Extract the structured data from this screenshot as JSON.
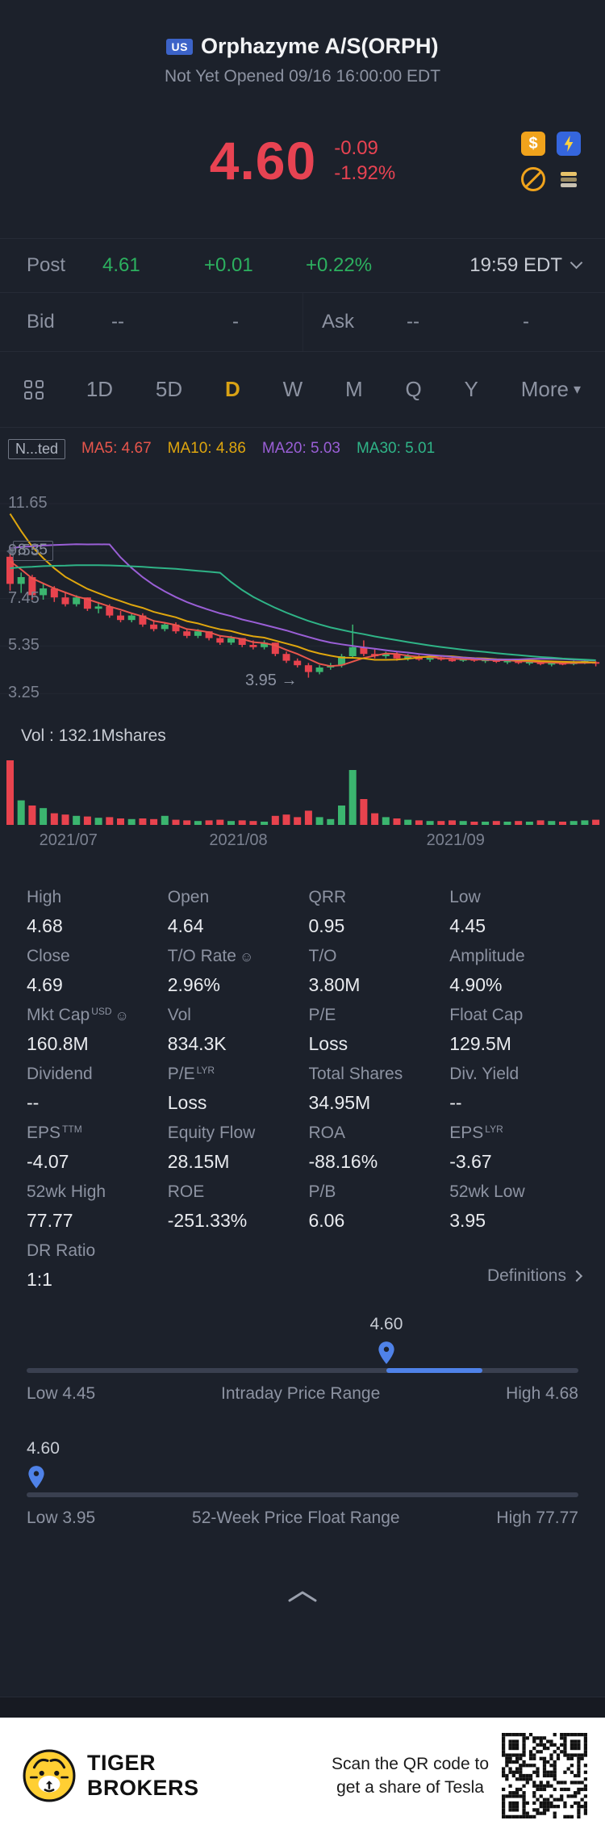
{
  "header": {
    "flag": "US",
    "title": "Orphazyme A/S(ORPH)",
    "status": "Not Yet Opened 09/16 16:00:00 EDT"
  },
  "quote": {
    "price": "4.60",
    "change": "-0.09",
    "change_pct": "-1.92%"
  },
  "post": {
    "label": "Post",
    "price": "4.61",
    "change": "+0.01",
    "change_pct": "+0.22%",
    "time": "19:59 EDT"
  },
  "bidask": {
    "bid_label": "Bid",
    "bid_price": "--",
    "bid_size": "-",
    "ask_label": "Ask",
    "ask_price": "--",
    "ask_size": "-"
  },
  "tabs": {
    "active": "D",
    "items": [
      {
        "label": "1D"
      },
      {
        "label": "5D"
      },
      {
        "label": "D"
      },
      {
        "label": "W"
      },
      {
        "label": "M"
      },
      {
        "label": "Q"
      },
      {
        "label": "Y"
      },
      {
        "label": "More",
        "dropdown": true
      }
    ]
  },
  "legend": {
    "adjust": "N...ted"
  },
  "chart": {
    "up_color": "#3bb56f",
    "down_color": "#e8434e",
    "y_labels": [
      {
        "text": "11.65",
        "v": 11.65
      },
      {
        "text": "9.55",
        "v": 9.55
      },
      {
        "text": "7.45",
        "v": 7.45
      },
      {
        "text": "5.35",
        "v": 5.35
      },
      {
        "text": "3.25",
        "v": 3.25
      }
    ],
    "high_tag": "8.35",
    "low_tag": "3.95",
    "low_arrow": "→",
    "vol_text": "Vol : 132.1Mshares",
    "x_labels": [
      {
        "text": "2021/07",
        "pct": 11.3
      },
      {
        "text": "2021/08",
        "pct": 39.4
      },
      {
        "text": "2021/09",
        "pct": 75.3
      }
    ],
    "ma": [
      {
        "window": 5,
        "color": "#e8564c",
        "legend": "MA5: 4.67"
      },
      {
        "window": 10,
        "color": "#dfa60e",
        "legend": "MA10: 4.86"
      },
      {
        "window": 20,
        "color": "#9a5fd6",
        "legend": "MA20: 5.03"
      },
      {
        "window": 30,
        "color": "#2fb487",
        "legend": "MA30: 5.01"
      }
    ],
    "prehistory": [
      7.0,
      7.2,
      6.9,
      7.1,
      7.0,
      6.8,
      7.2,
      7.1,
      6.9,
      7.0,
      7.3,
      7.1,
      7.2,
      7.0,
      6.9,
      7.1,
      7.2,
      7.0,
      6.8,
      18.0,
      16.0,
      14.5,
      13.0,
      12.0,
      11.0,
      10.2,
      9.6,
      9.0,
      8.6
    ],
    "candles": [
      [
        9.3,
        9.5,
        7.8,
        8.1,
        100
      ],
      [
        8.1,
        8.6,
        7.7,
        8.4,
        38
      ],
      [
        8.4,
        8.5,
        7.4,
        7.6,
        30
      ],
      [
        7.6,
        8.1,
        7.4,
        7.9,
        26
      ],
      [
        7.9,
        8.0,
        7.3,
        7.5,
        18
      ],
      [
        7.5,
        7.7,
        7.1,
        7.2,
        16
      ],
      [
        7.2,
        7.6,
        7.1,
        7.5,
        14
      ],
      [
        7.5,
        7.5,
        6.9,
        7.0,
        13
      ],
      [
        7.0,
        7.3,
        6.8,
        7.1,
        11
      ],
      [
        7.1,
        7.2,
        6.6,
        6.7,
        12
      ],
      [
        6.7,
        6.9,
        6.4,
        6.5,
        10
      ],
      [
        6.5,
        6.8,
        6.4,
        6.7,
        9
      ],
      [
        6.7,
        6.8,
        6.2,
        6.3,
        10
      ],
      [
        6.3,
        6.5,
        6.0,
        6.1,
        9
      ],
      [
        6.1,
        6.4,
        6.0,
        6.3,
        14
      ],
      [
        6.3,
        6.4,
        5.9,
        6.0,
        8
      ],
      [
        6.0,
        6.1,
        5.7,
        5.8,
        7
      ],
      [
        5.8,
        6.1,
        5.7,
        6.0,
        6
      ],
      [
        6.0,
        6.0,
        5.6,
        5.7,
        7
      ],
      [
        5.7,
        5.8,
        5.4,
        5.5,
        8
      ],
      [
        5.5,
        5.8,
        5.4,
        5.7,
        6
      ],
      [
        5.7,
        5.7,
        5.3,
        5.4,
        7
      ],
      [
        5.4,
        5.6,
        5.2,
        5.3,
        6
      ],
      [
        5.3,
        5.6,
        5.2,
        5.5,
        5
      ],
      [
        5.5,
        5.5,
        4.9,
        5.0,
        14
      ],
      [
        5.0,
        5.1,
        4.6,
        4.7,
        16
      ],
      [
        4.7,
        4.8,
        4.4,
        4.5,
        12
      ],
      [
        4.5,
        4.6,
        3.95,
        4.2,
        22
      ],
      [
        4.2,
        4.5,
        4.1,
        4.4,
        12
      ],
      [
        4.4,
        4.6,
        4.3,
        4.5,
        9
      ],
      [
        4.5,
        5.0,
        4.4,
        4.9,
        30
      ],
      [
        4.9,
        6.3,
        4.8,
        5.3,
        85
      ],
      [
        5.3,
        5.6,
        4.9,
        5.0,
        40
      ],
      [
        5.0,
        5.2,
        4.8,
        4.9,
        18
      ],
      [
        4.9,
        5.1,
        4.8,
        5.0,
        12
      ],
      [
        5.0,
        5.1,
        4.7,
        4.8,
        10
      ],
      [
        4.8,
        5.0,
        4.7,
        4.9,
        8
      ],
      [
        4.9,
        4.95,
        4.7,
        4.75,
        7
      ],
      [
        4.75,
        4.9,
        4.65,
        4.85,
        6
      ],
      [
        4.85,
        4.9,
        4.7,
        4.75,
        6
      ],
      [
        4.75,
        4.85,
        4.65,
        4.7,
        7
      ],
      [
        4.7,
        4.85,
        4.65,
        4.8,
        6
      ],
      [
        4.8,
        4.85,
        4.65,
        4.7,
        5
      ],
      [
        4.7,
        4.8,
        4.6,
        4.75,
        5
      ],
      [
        4.75,
        4.8,
        4.6,
        4.65,
        6
      ],
      [
        4.65,
        4.75,
        4.55,
        4.7,
        5
      ],
      [
        4.7,
        4.75,
        4.55,
        4.6,
        6
      ],
      [
        4.6,
        4.7,
        4.5,
        4.65,
        5
      ],
      [
        4.65,
        4.7,
        4.5,
        4.55,
        7
      ],
      [
        4.55,
        4.65,
        4.45,
        4.6,
        6
      ],
      [
        4.6,
        4.65,
        4.5,
        4.55,
        5
      ],
      [
        4.55,
        4.7,
        4.5,
        4.65,
        6
      ],
      [
        4.65,
        4.72,
        4.55,
        4.69,
        7
      ],
      [
        4.64,
        4.68,
        4.45,
        4.6,
        8
      ]
    ]
  },
  "stats": {
    "cells": [
      {
        "label": "High",
        "value": "4.68"
      },
      {
        "label": "Open",
        "value": "4.64"
      },
      {
        "label": "QRR",
        "value": "0.95"
      },
      {
        "label": "Low",
        "value": "4.45"
      },
      {
        "label": "Close",
        "value": "4.69"
      },
      {
        "label": "T/O Rate",
        "info": true,
        "value": "2.96%"
      },
      {
        "label": "T/O",
        "value": "3.80M"
      },
      {
        "label": "Amplitude",
        "value": "4.90%"
      },
      {
        "label": "Mkt Cap",
        "sup": "USD",
        "info": true,
        "value": "160.8M"
      },
      {
        "label": "Vol",
        "value": "834.3K"
      },
      {
        "label": "P/E",
        "value": "Loss"
      },
      {
        "label": "Float Cap",
        "value": "129.5M"
      },
      {
        "label": "Dividend",
        "value": "--"
      },
      {
        "label": "P/E",
        "sup": "LYR",
        "value": "Loss"
      },
      {
        "label": "Total Shares",
        "value": "34.95M"
      },
      {
        "label": "Div. Yield",
        "value": "--"
      },
      {
        "label": "EPS",
        "sup": "TTM",
        "value": "-4.07"
      },
      {
        "label": "Equity Flow",
        "value": "28.15M"
      },
      {
        "label": "ROA",
        "value": "-88.16%"
      },
      {
        "label": "EPS",
        "sup": "LYR",
        "value": "-3.67"
      },
      {
        "label": "52wk High",
        "value": "77.77"
      },
      {
        "label": "ROE",
        "value": "-251.33%"
      },
      {
        "label": "P/B",
        "value": "6.06"
      },
      {
        "label": "52wk Low",
        "value": "3.95"
      },
      {
        "label": "DR Ratio",
        "value": "1:1"
      }
    ],
    "definitions": "Definitions"
  },
  "sliders": [
    {
      "value": "4.60",
      "low_label": "Low 4.45",
      "title": "Intraday Price Range",
      "high_label": "High 4.68",
      "pin_pct": 65.2,
      "value_pct": 65.2,
      "value_anchor": "center",
      "fill_start_pct": 65.2,
      "fill_width_pct": 17.4
    },
    {
      "value": "4.60",
      "low_label": "Low 3.95",
      "title": "52-Week Price Float Range",
      "high_label": "High 77.77",
      "pin_pct": 1.8,
      "value_pct": 0,
      "value_anchor": "left",
      "fill_start_pct": 0,
      "fill_width_pct": 0
    }
  ],
  "footer": {
    "brand_line1": "TIGER",
    "brand_line2": "BROKERS",
    "promo_line1": "Scan the QR code to",
    "promo_line2": "get a share of Tesla"
  }
}
